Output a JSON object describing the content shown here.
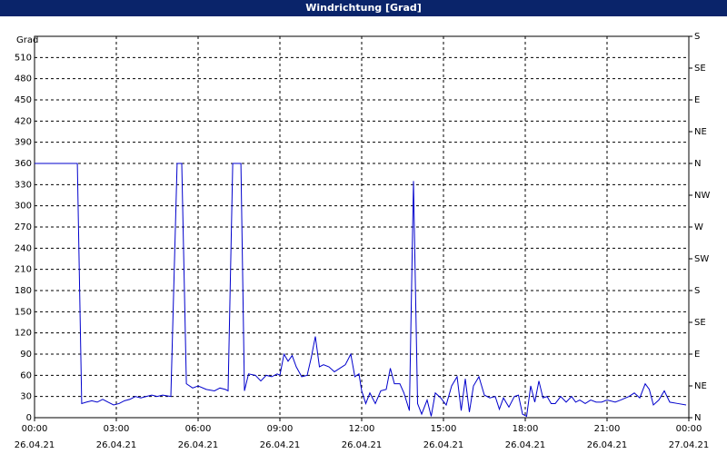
{
  "chart_data": {
    "type": "line",
    "title": "Windrichtung [Grad]",
    "y_label": "Grad",
    "x": [
      0,
      1.57,
      1.73,
      1.9,
      2.1,
      2.3,
      2.5,
      2.7,
      2.9,
      3.1,
      3.3,
      3.5,
      3.7,
      3.9,
      4.1,
      4.3,
      4.5,
      4.7,
      5.0,
      5.23,
      5.4,
      5.57,
      5.8,
      6.0,
      6.3,
      6.6,
      6.8,
      7.0,
      7.1,
      7.27,
      7.57,
      7.7,
      7.85,
      8.1,
      8.3,
      8.5,
      8.7,
      8.9,
      9.0,
      9.15,
      9.3,
      9.45,
      9.6,
      9.8,
      10.0,
      10.15,
      10.3,
      10.45,
      10.6,
      10.8,
      11.0,
      11.2,
      11.4,
      11.6,
      11.75,
      11.9,
      12.0,
      12.15,
      12.3,
      12.5,
      12.7,
      12.9,
      13.05,
      13.2,
      13.4,
      13.55,
      13.75,
      13.9,
      14.05,
      14.2,
      14.4,
      14.55,
      14.7,
      14.9,
      15.1,
      15.3,
      15.5,
      15.65,
      15.8,
      15.95,
      16.1,
      16.3,
      16.5,
      16.7,
      16.9,
      17.05,
      17.2,
      17.4,
      17.6,
      17.75,
      17.9,
      18.05,
      18.2,
      18.35,
      18.5,
      18.65,
      18.8,
      18.95,
      19.1,
      19.3,
      19.5,
      19.7,
      19.85,
      20.0,
      20.2,
      20.4,
      20.6,
      20.8,
      21.0,
      21.3,
      21.5,
      21.8,
      22.0,
      22.2,
      22.4,
      22.55,
      22.7,
      22.9,
      23.1,
      23.3,
      23.6,
      23.9
    ],
    "series": [
      {
        "name": "Windrichtung",
        "color": "#0000cc",
        "values": [
          360,
          360,
          20,
          22,
          24,
          22,
          26,
          22,
          18,
          20,
          24,
          26,
          30,
          28,
          30,
          32,
          30,
          32,
          30,
          360,
          360,
          48,
          42,
          45,
          40,
          38,
          42,
          40,
          38,
          360,
          360,
          38,
          62,
          60,
          52,
          60,
          58,
          62,
          60,
          90,
          80,
          88,
          72,
          58,
          60,
          85,
          115,
          72,
          75,
          72,
          65,
          70,
          75,
          90,
          58,
          62,
          38,
          20,
          35,
          20,
          38,
          40,
          70,
          48,
          48,
          35,
          10,
          335,
          20,
          5,
          25,
          2,
          35,
          28,
          18,
          45,
          58,
          10,
          55,
          8,
          45,
          58,
          32,
          28,
          30,
          12,
          28,
          15,
          30,
          32,
          5,
          2,
          45,
          22,
          52,
          28,
          30,
          20,
          20,
          30,
          22,
          30,
          22,
          25,
          20,
          25,
          22,
          22,
          25,
          22,
          25,
          30,
          35,
          28,
          48,
          40,
          18,
          25,
          38,
          22,
          20,
          18
        ]
      }
    ],
    "xlim": [
      0,
      24
    ],
    "xticks": [
      {
        "value": 0,
        "label": "00:00"
      },
      {
        "value": 3,
        "label": "03:00"
      },
      {
        "value": 6,
        "label": "06:00"
      },
      {
        "value": 9,
        "label": "09:00"
      },
      {
        "value": 12,
        "label": "12:00"
      },
      {
        "value": 15,
        "label": "15:00"
      },
      {
        "value": 18,
        "label": "18:00"
      },
      {
        "value": 21,
        "label": "21:00"
      },
      {
        "value": 24,
        "label": "00:00"
      }
    ],
    "xtick_dates": [
      "26.04.21",
      "26.04.21",
      "26.04.21",
      "26.04.21",
      "26.04.21",
      "26.04.21",
      "26.04.21",
      "26.04.21",
      "27.04.21"
    ],
    "ylim": [
      0,
      540
    ],
    "yticks": [
      0,
      30,
      60,
      90,
      120,
      150,
      180,
      210,
      240,
      270,
      300,
      330,
      360,
      390,
      420,
      450,
      480,
      510
    ],
    "y2lim": [
      0,
      540
    ],
    "y2ticks": [
      {
        "value": 0,
        "label": "N"
      },
      {
        "value": 45,
        "label": "NE"
      },
      {
        "value": 90,
        "label": "E"
      },
      {
        "value": 135,
        "label": "SE"
      },
      {
        "value": 180,
        "label": "S"
      },
      {
        "value": 225,
        "label": "SW"
      },
      {
        "value": 270,
        "label": "W"
      },
      {
        "value": 315,
        "label": "NW"
      },
      {
        "value": 360,
        "label": "N"
      },
      {
        "value": 405,
        "label": "NE"
      },
      {
        "value": 450,
        "label": "E"
      },
      {
        "value": 495,
        "label": "SE"
      },
      {
        "value": 540,
        "label": "S"
      }
    ],
    "grid": true
  }
}
